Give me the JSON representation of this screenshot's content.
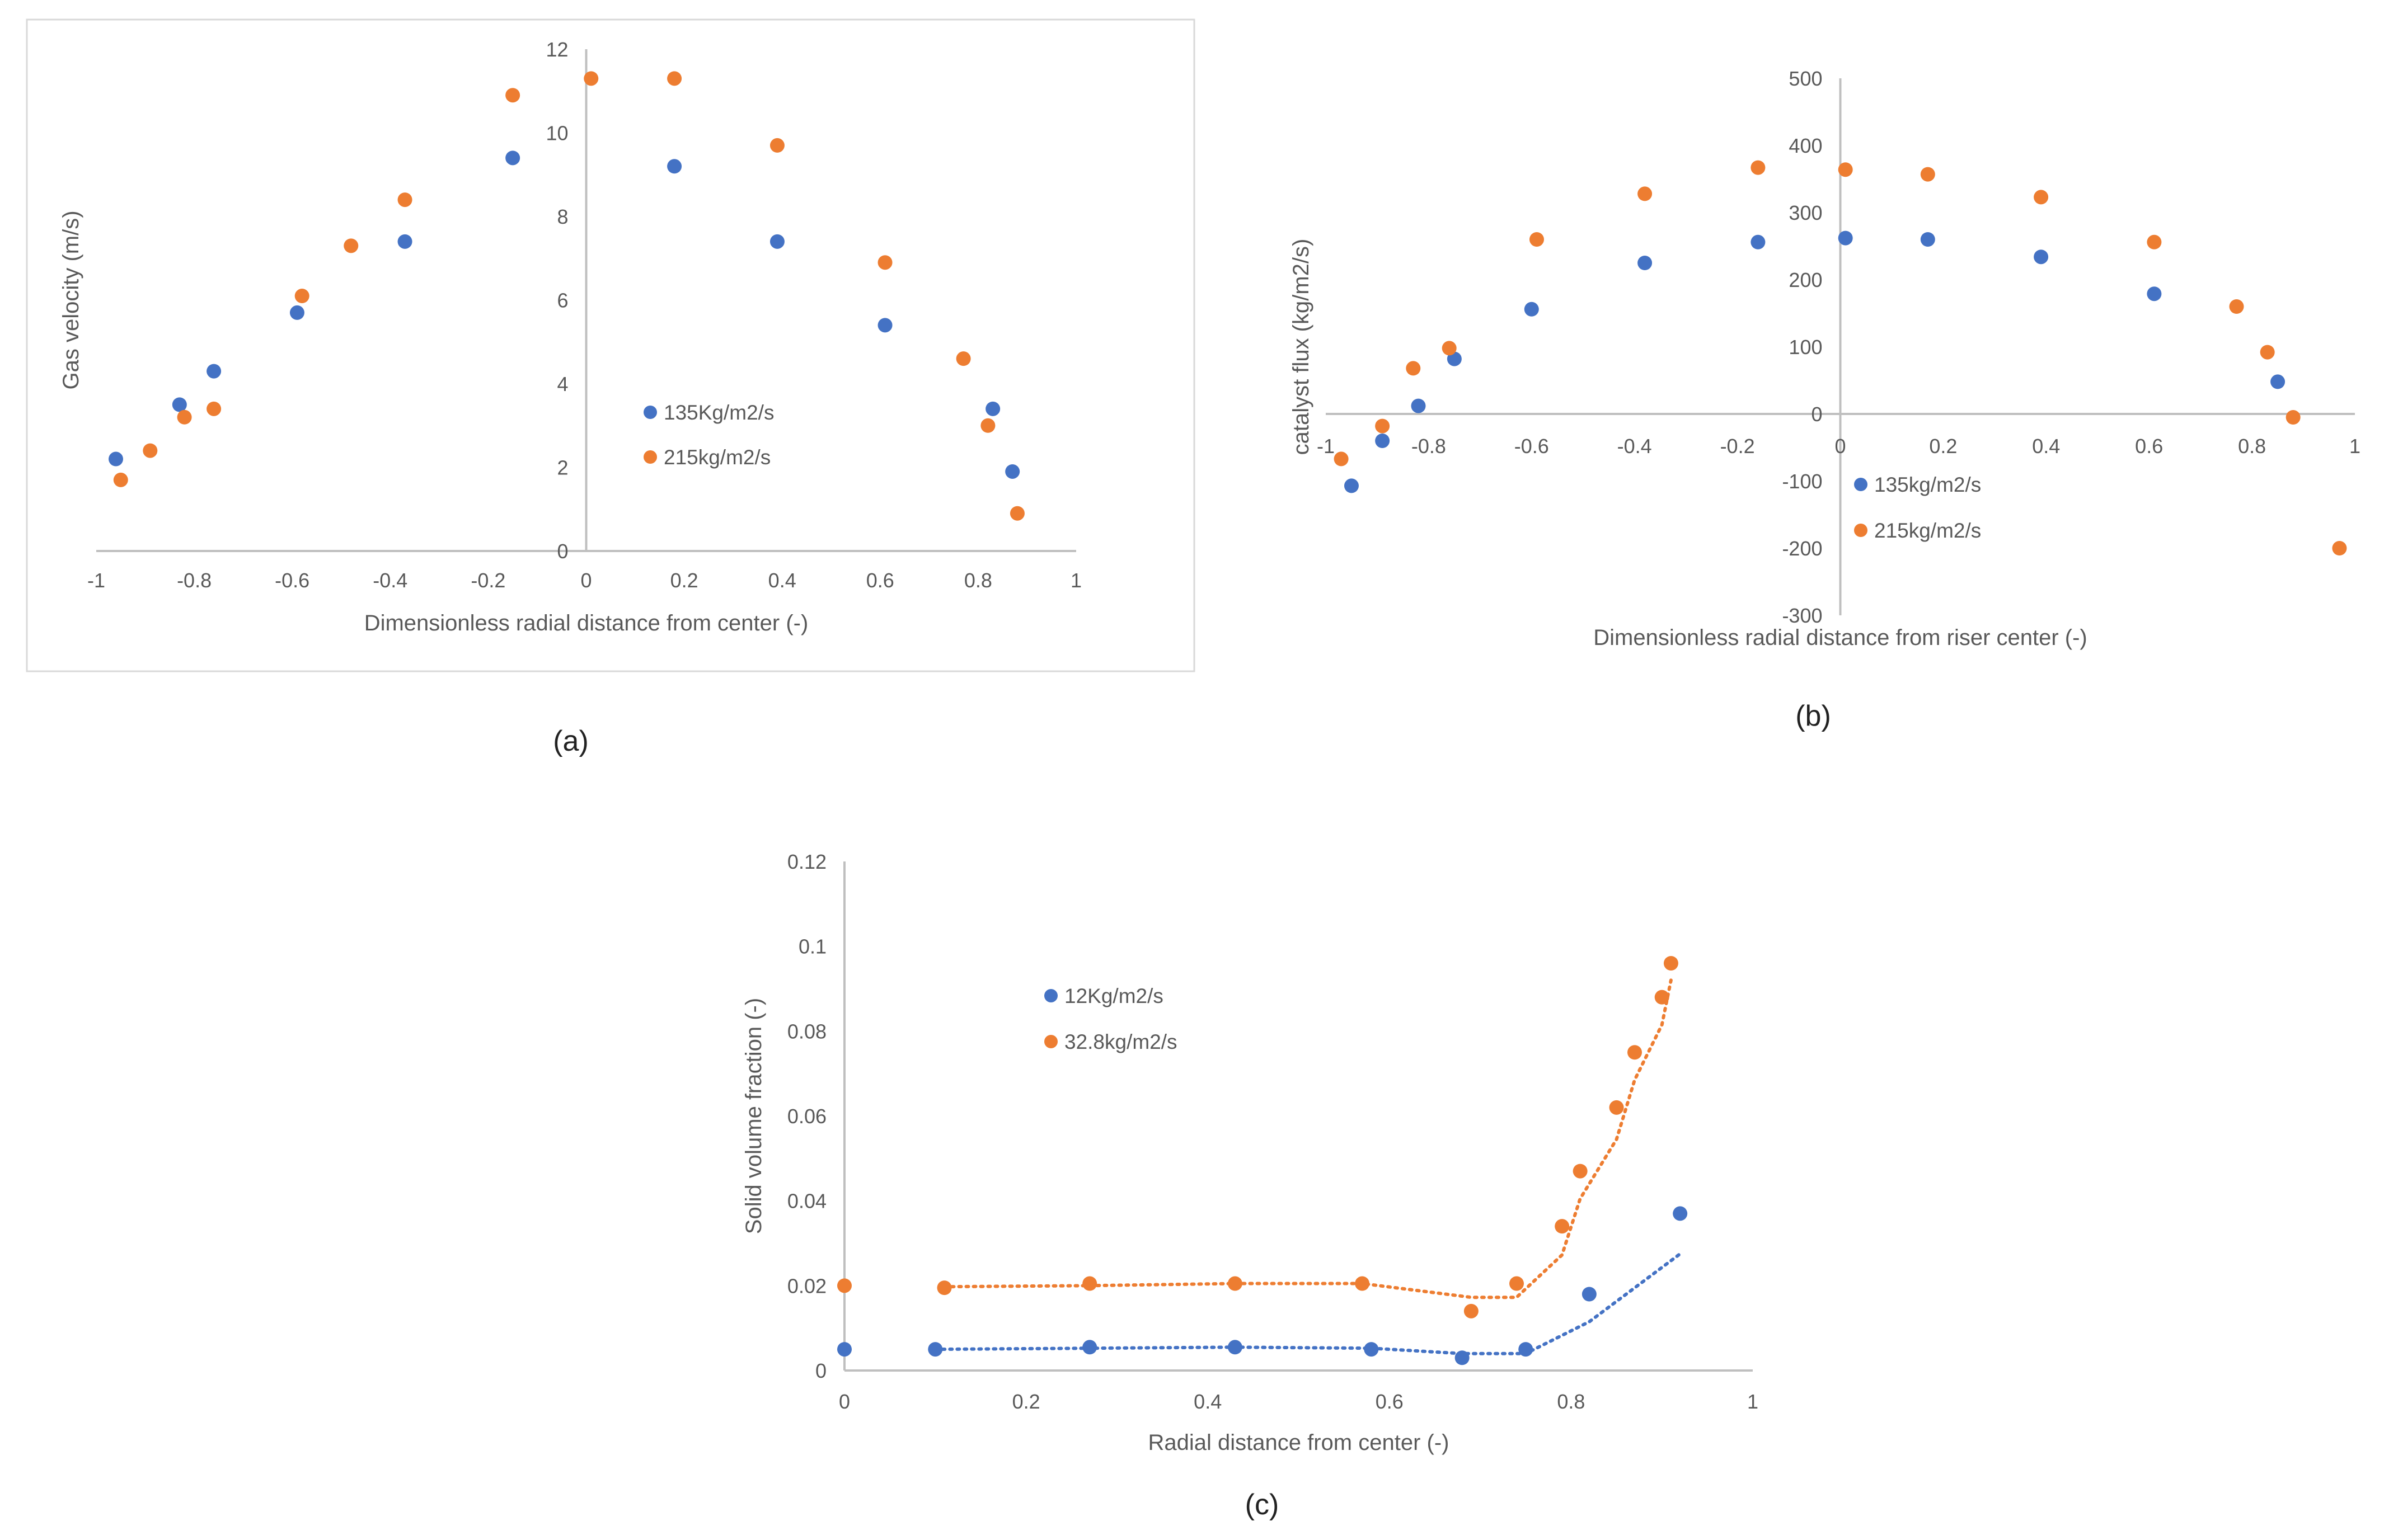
{
  "colors": {
    "series1": "#4472C4",
    "series2": "#ED7D31",
    "axis": "#BFBFBF",
    "text": "#595959",
    "frame": "#D9D9D9"
  },
  "panels": [
    {
      "caption": "(a)"
    },
    {
      "caption": "(b)"
    },
    {
      "caption": "(c)"
    }
  ],
  "chart_data": [
    {
      "type": "scatter",
      "title": "",
      "xlabel": "Dimensionless radial distance from center (-)",
      "ylabel": "Gas velocity (m/s)",
      "xlim": [
        -1,
        1
      ],
      "ylim": [
        0,
        12
      ],
      "xticks": [
        "-1",
        "-0.8",
        "-0.6",
        "-0.4",
        "-0.2",
        "0",
        "0.2",
        "0.4",
        "0.6",
        "0.8",
        "1"
      ],
      "yticks": [
        "0",
        "2",
        "4",
        "6",
        "8",
        "10",
        "12"
      ],
      "grid": false,
      "legend": "center-right",
      "trendline": "polynomial (dotted)",
      "series": [
        {
          "name": "135Kg/m2/s",
          "x": [
            -0.96,
            -0.83,
            -0.76,
            -0.59,
            -0.37,
            -0.15,
            0.18,
            0.39,
            0.61,
            0.83,
            0.87
          ],
          "y": [
            2.2,
            3.5,
            4.3,
            5.7,
            7.4,
            9.4,
            9.2,
            7.4,
            5.4,
            3.4,
            1.9
          ]
        },
        {
          "name": "215kg/m2/s",
          "x": [
            -0.95,
            -0.89,
            -0.82,
            -0.76,
            -0.58,
            -0.48,
            -0.37,
            -0.15,
            0.01,
            0.18,
            0.39,
            0.61,
            0.77,
            0.82,
            0.88
          ],
          "y": [
            1.7,
            2.4,
            3.2,
            3.4,
            6.1,
            7.3,
            8.4,
            10.9,
            11.3,
            11.3,
            9.7,
            6.9,
            4.6,
            3.0,
            0.9
          ]
        }
      ]
    },
    {
      "type": "scatter",
      "title": "",
      "xlabel": "Dimensionless radial distance from riser center (-)",
      "ylabel": "catalyst flux (kg/m2/s)",
      "xlim": [
        -1,
        1
      ],
      "ylim": [
        -300,
        500
      ],
      "xticks": [
        "-1",
        "-0.8",
        "-0.6",
        "-0.4",
        "-0.2",
        "0",
        "0.2",
        "0.4",
        "0.6",
        "0.8",
        "1"
      ],
      "yticks": [
        "-300",
        "-200",
        "-100",
        "0",
        "100",
        "200",
        "300",
        "400",
        "500"
      ],
      "grid": false,
      "legend": "bottom-center",
      "trendline": "polynomial (dotted)",
      "series": [
        {
          "name": "135kg/m2/s",
          "x": [
            -0.95,
            -0.89,
            -0.82,
            -0.75,
            -0.6,
            -0.38,
            -0.16,
            0.01,
            0.17,
            0.39,
            0.61,
            0.85
          ],
          "y": [
            -107,
            -40,
            12,
            82,
            156,
            225,
            256,
            262,
            260,
            234,
            179,
            48
          ]
        },
        {
          "name": "215kg/m2/s",
          "x": [
            -0.97,
            -0.89,
            -0.83,
            -0.76,
            -0.59,
            -0.38,
            -0.16,
            0.01,
            0.17,
            0.39,
            0.61,
            0.77,
            0.83,
            0.88,
            0.97
          ],
          "y": [
            -67,
            -18,
            68,
            98,
            260,
            328,
            367,
            364,
            357,
            323,
            256,
            160,
            92,
            -5,
            -200
          ]
        }
      ]
    },
    {
      "type": "scatter",
      "title": "",
      "xlabel": "Radial distance from center (-)",
      "ylabel": "Solid volume fraction (-)",
      "xlim": [
        0,
        1
      ],
      "ylim": [
        0,
        0.12
      ],
      "xticks": [
        "0",
        "0.2",
        "0.4",
        "0.6",
        "0.8",
        "1"
      ],
      "yticks": [
        "0",
        "0.02",
        "0.04",
        "0.06",
        "0.08",
        "0.1",
        "0.12"
      ],
      "grid": false,
      "legend": "top-left",
      "trendline": "moving average (dotted)",
      "series": [
        {
          "name": "12Kg/m2/s",
          "x": [
            0,
            0.1,
            0.27,
            0.43,
            0.58,
            0.68,
            0.75,
            0.82,
            0.92
          ],
          "y": [
            0.005,
            0.005,
            0.0055,
            0.0055,
            0.005,
            0.003,
            0.005,
            0.018,
            0.037
          ]
        },
        {
          "name": "32.8kg/m2/s",
          "x": [
            0,
            0.11,
            0.27,
            0.43,
            0.57,
            0.69,
            0.74,
            0.79,
            0.81,
            0.85,
            0.87,
            0.9,
            0.91
          ],
          "y": [
            0.02,
            0.0195,
            0.0205,
            0.0205,
            0.0205,
            0.014,
            0.0205,
            0.034,
            0.047,
            0.062,
            0.075,
            0.088,
            0.096
          ]
        }
      ]
    }
  ]
}
